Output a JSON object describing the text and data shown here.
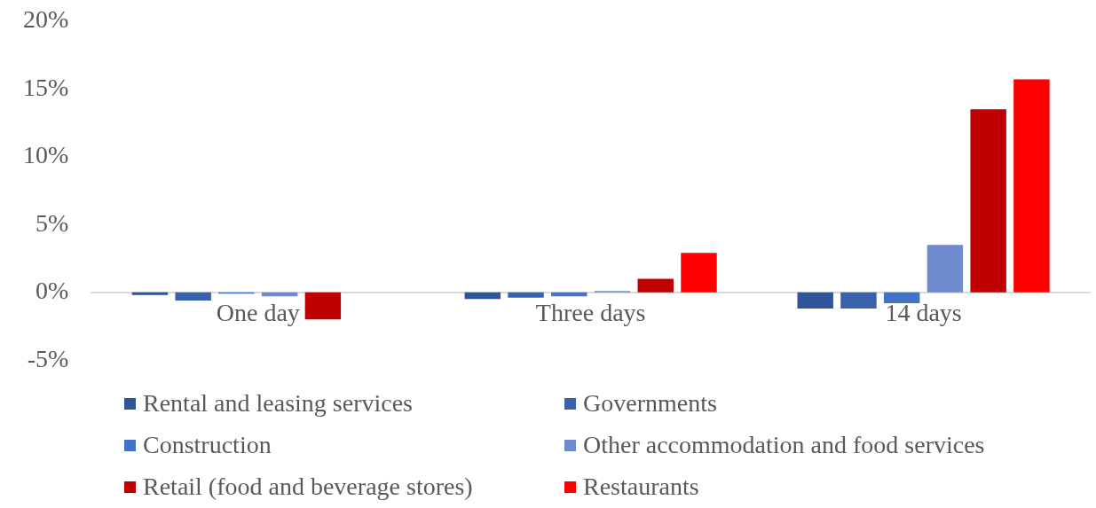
{
  "chart_data": {
    "type": "bar",
    "categories": [
      "One day",
      "Three days",
      "14 days"
    ],
    "series": [
      {
        "name": "Rental and leasing services",
        "color": "#2f5597",
        "values": [
          -0.2,
          -0.5,
          -1.2
        ]
      },
      {
        "name": "Governments",
        "color": "#3a62ab",
        "values": [
          -0.6,
          -0.4,
          -1.2
        ]
      },
      {
        "name": "Construction",
        "color": "#4472c4",
        "values": [
          -0.1,
          -0.3,
          -0.8
        ]
      },
      {
        "name": "Other accommodation and food services",
        "color": "#6f8bcd",
        "values": [
          -0.3,
          0.1,
          3.5
        ]
      },
      {
        "name": "Retail (food and beverage stores)",
        "color": "#c00000",
        "values": [
          -2.0,
          1.0,
          13.5
        ]
      },
      {
        "name": "Restaurants",
        "color": "#ff0000",
        "values": [
          0,
          2.9,
          15.7
        ]
      }
    ],
    "ylim": [
      -5,
      20
    ],
    "yticks": [
      {
        "value": -5,
        "label": "-5%"
      },
      {
        "value": 0,
        "label": "0%"
      },
      {
        "value": 5,
        "label": "5%"
      },
      {
        "value": 10,
        "label": "10%"
      },
      {
        "value": 15,
        "label": "15%"
      },
      {
        "value": 20,
        "label": "20%"
      }
    ],
    "grid": false,
    "legend": "bottom"
  }
}
